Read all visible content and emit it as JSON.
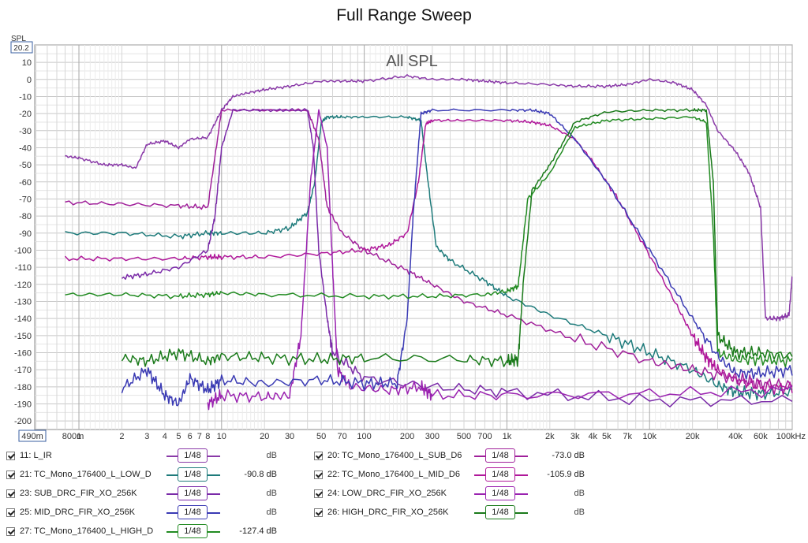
{
  "title": "Full Range Sweep",
  "chart_data": {
    "type": "line",
    "title": "All SPL",
    "ylabel": "SPL",
    "xlabel": "",
    "x_scale": "log",
    "xlim": [
      0.49,
      100000
    ],
    "ylim": [
      -205,
      20.2
    ],
    "grid": true,
    "y_top_label": "20.2",
    "x_left_label": "490m",
    "y_ticks": [
      10,
      0,
      -10,
      -20,
      -30,
      -40,
      -50,
      -60,
      -70,
      -80,
      -90,
      -100,
      -110,
      -120,
      -130,
      -140,
      -150,
      -160,
      -170,
      -180,
      -190,
      -200
    ],
    "x_ticks": [
      {
        "v": 0.8,
        "t": "800m"
      },
      {
        "v": 1,
        "t": "1"
      },
      {
        "v": 2,
        "t": "2"
      },
      {
        "v": 3,
        "t": "3"
      },
      {
        "v": 4,
        "t": "4"
      },
      {
        "v": 5,
        "t": "5"
      },
      {
        "v": 6,
        "t": "6"
      },
      {
        "v": 7,
        "t": "7"
      },
      {
        "v": 8,
        "t": "8"
      },
      {
        "v": 10,
        "t": "10"
      },
      {
        "v": 20,
        "t": "20"
      },
      {
        "v": 30,
        "t": "30"
      },
      {
        "v": 50,
        "t": "50"
      },
      {
        "v": 70,
        "t": "70"
      },
      {
        "v": 100,
        "t": "100"
      },
      {
        "v": 200,
        "t": "200"
      },
      {
        "v": 300,
        "t": "300"
      },
      {
        "v": 500,
        "t": "500"
      },
      {
        "v": 700,
        "t": "700"
      },
      {
        "v": 1000,
        "t": "1k"
      },
      {
        "v": 2000,
        "t": "2k"
      },
      {
        "v": 3000,
        "t": "3k"
      },
      {
        "v": 4000,
        "t": "4k"
      },
      {
        "v": 5000,
        "t": "5k"
      },
      {
        "v": 7000,
        "t": "7k"
      },
      {
        "v": 10000,
        "t": "10k"
      },
      {
        "v": 20000,
        "t": "20k"
      },
      {
        "v": 40000,
        "t": "40k"
      },
      {
        "v": 60000,
        "t": "60k"
      },
      {
        "v": 100000,
        "t": "100kHz"
      }
    ],
    "series": [
      {
        "name": "11: L_IR",
        "color": "#8a3aa8",
        "value_label": "dB",
        "points": [
          [
            0.8,
            -45
          ],
          [
            1,
            -46
          ],
          [
            1.5,
            -50
          ],
          [
            2,
            -50
          ],
          [
            2.5,
            -52
          ],
          [
            3,
            -38
          ],
          [
            4,
            -36
          ],
          [
            5,
            -40
          ],
          [
            6,
            -35
          ],
          [
            8,
            -34
          ],
          [
            10,
            -18
          ],
          [
            12,
            -10
          ],
          [
            15,
            -8
          ],
          [
            20,
            -6
          ],
          [
            30,
            -4
          ],
          [
            50,
            -1
          ],
          [
            70,
            -1
          ],
          [
            100,
            -1
          ],
          [
            200,
            2
          ],
          [
            300,
            0
          ],
          [
            500,
            0
          ],
          [
            700,
            -1
          ],
          [
            1000,
            -2
          ],
          [
            2000,
            -3
          ],
          [
            3000,
            -4
          ],
          [
            5000,
            -4
          ],
          [
            7000,
            -3
          ],
          [
            10000,
            0
          ],
          [
            15000,
            -2
          ],
          [
            20000,
            -6
          ],
          [
            25000,
            -15
          ],
          [
            30000,
            -30
          ],
          [
            40000,
            -42
          ],
          [
            50000,
            -55
          ],
          [
            60000,
            -75
          ],
          [
            65000,
            -140
          ],
          [
            80000,
            -140
          ],
          [
            95000,
            -138
          ],
          [
            100000,
            -115
          ]
        ]
      },
      {
        "name": "21: TC_Mono_176400_L_LOW_D",
        "color": "#1e7b7b",
        "value_label": "-90.8 dB",
        "points": [
          [
            0.8,
            -90
          ],
          [
            2,
            -90
          ],
          [
            5,
            -92
          ],
          [
            8,
            -90
          ],
          [
            10,
            -90
          ],
          [
            20,
            -90
          ],
          [
            30,
            -87
          ],
          [
            40,
            -78
          ],
          [
            45,
            -60
          ],
          [
            50,
            -25
          ],
          [
            55,
            -22
          ],
          [
            70,
            -22
          ],
          [
            100,
            -22
          ],
          [
            200,
            -22
          ],
          [
            250,
            -24
          ],
          [
            280,
            -60
          ],
          [
            320,
            -98
          ],
          [
            400,
            -106
          ],
          [
            700,
            -118
          ],
          [
            1000,
            -127
          ],
          [
            2000,
            -138
          ],
          [
            5000,
            -150
          ],
          [
            10000,
            -160
          ],
          [
            20000,
            -170
          ],
          [
            30000,
            -179
          ],
          [
            40000,
            -183
          ],
          [
            60000,
            -184
          ],
          [
            100000,
            -183
          ]
        ]
      },
      {
        "name": "20: TC_Mono_176400_L_SUB_D6",
        "color": "#a0209a",
        "value_label": "-73.0 dB",
        "points": [
          [
            0.8,
            -72
          ],
          [
            2,
            -73
          ],
          [
            5,
            -74
          ],
          [
            8,
            -75
          ],
          [
            10,
            -18
          ],
          [
            20,
            -18
          ],
          [
            40,
            -18
          ],
          [
            48,
            -35
          ],
          [
            55,
            -75
          ],
          [
            70,
            -90
          ],
          [
            100,
            -100
          ],
          [
            200,
            -112
          ],
          [
            300,
            -120
          ],
          [
            500,
            -130
          ],
          [
            1000,
            -138
          ],
          [
            3000,
            -152
          ],
          [
            10000,
            -165
          ],
          [
            20000,
            -170
          ],
          [
            40000,
            -175
          ],
          [
            60000,
            -178
          ],
          [
            100000,
            -179
          ]
        ]
      },
      {
        "name": "22: TC_Mono_176400_L_MID_D6",
        "color": "#b0189a",
        "value_label": "-105.9 dB",
        "points": [
          [
            0.8,
            -105
          ],
          [
            2,
            -105
          ],
          [
            5,
            -105
          ],
          [
            8,
            -104
          ],
          [
            10,
            -104
          ],
          [
            20,
            -104
          ],
          [
            50,
            -102
          ],
          [
            100,
            -100
          ],
          [
            150,
            -97
          ],
          [
            200,
            -90
          ],
          [
            240,
            -60
          ],
          [
            270,
            -26
          ],
          [
            300,
            -24
          ],
          [
            500,
            -24
          ],
          [
            1000,
            -24
          ],
          [
            1500,
            -25
          ],
          [
            2000,
            -27
          ],
          [
            3000,
            -35
          ],
          [
            4000,
            -48
          ],
          [
            6000,
            -70
          ],
          [
            10000,
            -103
          ],
          [
            15000,
            -130
          ],
          [
            20000,
            -150
          ],
          [
            25000,
            -163
          ],
          [
            30000,
            -170
          ],
          [
            40000,
            -176
          ],
          [
            60000,
            -180
          ],
          [
            100000,
            -181
          ]
        ]
      },
      {
        "name": "23: SUB_DRC_FIR_XO_256K",
        "color": "#7a2aa8",
        "value_label": "dB",
        "points": [
          [
            2,
            -116
          ],
          [
            3,
            -114
          ],
          [
            5,
            -110
          ],
          [
            8,
            -100
          ],
          [
            9,
            -80
          ],
          [
            10,
            -40
          ],
          [
            12,
            -18
          ],
          [
            20,
            -18
          ],
          [
            40,
            -18
          ],
          [
            44,
            -40
          ],
          [
            48,
            -100
          ],
          [
            55,
            -140
          ],
          [
            60,
            -160
          ],
          [
            100,
            -175
          ],
          [
            300,
            -180
          ],
          [
            1000,
            -183
          ],
          [
            10000,
            -188
          ],
          [
            100000,
            -188
          ]
        ]
      },
      {
        "name": "24: LOW_DRC_FIR_XO_256K",
        "color": "#9a22b0",
        "value_label": "dB",
        "points": [
          [
            8,
            -190
          ],
          [
            10,
            -185
          ],
          [
            20,
            -186
          ],
          [
            30,
            -185
          ],
          [
            36,
            -150
          ],
          [
            42,
            -60
          ],
          [
            48,
            -18
          ],
          [
            55,
            -40
          ],
          [
            60,
            -110
          ],
          [
            65,
            -170
          ],
          [
            80,
            -180
          ],
          [
            150,
            -182
          ],
          [
            250,
            -180
          ],
          [
            300,
            -185
          ],
          [
            1000,
            -185
          ],
          [
            10000,
            -184
          ],
          [
            100000,
            -182
          ]
        ]
      },
      {
        "name": "25: MID_DRC_FIR_XO_256K",
        "color": "#3a3ab4",
        "value_label": "dB",
        "points": [
          [
            2,
            -181
          ],
          [
            3,
            -170
          ],
          [
            4,
            -185
          ],
          [
            5,
            -190
          ],
          [
            6,
            -175
          ],
          [
            8,
            -182
          ],
          [
            10,
            -176
          ],
          [
            20,
            -178
          ],
          [
            50,
            -176
          ],
          [
            100,
            -178
          ],
          [
            170,
            -178
          ],
          [
            200,
            -140
          ],
          [
            220,
            -80
          ],
          [
            250,
            -20
          ],
          [
            300,
            -18
          ],
          [
            1000,
            -18
          ],
          [
            1500,
            -18
          ],
          [
            2000,
            -20
          ],
          [
            3000,
            -35
          ],
          [
            5000,
            -60
          ],
          [
            10000,
            -100
          ],
          [
            20000,
            -140
          ],
          [
            30000,
            -162
          ],
          [
            40000,
            -172
          ],
          [
            60000,
            -172
          ],
          [
            100000,
            -170
          ]
        ]
      },
      {
        "name": "26: HIGH_DRC_FIR_XO_256K",
        "color": "#1a7a1a",
        "value_label": "dB",
        "points": [
          [
            2,
            -163
          ],
          [
            3,
            -165
          ],
          [
            5,
            -160
          ],
          [
            8,
            -165
          ],
          [
            10,
            -162
          ],
          [
            20,
            -163
          ],
          [
            50,
            -164
          ],
          [
            100,
            -163
          ],
          [
            500,
            -164
          ],
          [
            1000,
            -165
          ],
          [
            1200,
            -164
          ],
          [
            1300,
            -120
          ],
          [
            1500,
            -65
          ],
          [
            2000,
            -50
          ],
          [
            3000,
            -25
          ],
          [
            5000,
            -19
          ],
          [
            10000,
            -18
          ],
          [
            20000,
            -18
          ],
          [
            25000,
            -18
          ],
          [
            28000,
            -60
          ],
          [
            30000,
            -150
          ],
          [
            40000,
            -160
          ],
          [
            60000,
            -160
          ],
          [
            100000,
            -162
          ]
        ]
      },
      {
        "name": "27: TC_Mono_176400_L_HIGH_D",
        "color": "#228b22",
        "value_label": "-127.4 dB",
        "points": [
          [
            0.8,
            -126
          ],
          [
            2,
            -126
          ],
          [
            5,
            -127
          ],
          [
            8,
            -126
          ],
          [
            10,
            -125
          ],
          [
            20,
            -126
          ],
          [
            100,
            -127
          ],
          [
            300,
            -127
          ],
          [
            700,
            -126
          ],
          [
            1000,
            -124
          ],
          [
            1200,
            -121
          ],
          [
            1400,
            -70
          ],
          [
            2000,
            -55
          ],
          [
            3000,
            -28
          ],
          [
            5000,
            -24
          ],
          [
            10000,
            -23
          ],
          [
            20000,
            -22
          ],
          [
            25000,
            -25
          ],
          [
            28000,
            -90
          ],
          [
            30000,
            -160
          ],
          [
            40000,
            -164
          ],
          [
            60000,
            -164
          ],
          [
            100000,
            -165
          ]
        ]
      }
    ]
  },
  "legend": [
    {
      "name": "11: L_IR",
      "smooth": "1/48",
      "value": "dB",
      "color": "#8a3aa8"
    },
    {
      "name": "20: TC_Mono_176400_L_SUB_D6",
      "smooth": "1/48",
      "value": "-73.0 dB",
      "color": "#a0209a"
    },
    {
      "name": "21: TC_Mono_176400_L_LOW_D",
      "smooth": "1/48",
      "value": "-90.8 dB",
      "color": "#1e7b7b"
    },
    {
      "name": "22: TC_Mono_176400_L_MID_D6",
      "smooth": "1/48",
      "value": "-105.9 dB",
      "color": "#b0189a"
    },
    {
      "name": "23: SUB_DRC_FIR_XO_256K",
      "smooth": "1/48",
      "value": "dB",
      "color": "#7a2aa8"
    },
    {
      "name": "24: LOW_DRC_FIR_XO_256K",
      "smooth": "1/48",
      "value": "dB",
      "color": "#9a22b0"
    },
    {
      "name": "25: MID_DRC_FIR_XO_256K",
      "smooth": "1/48",
      "value": "dB",
      "color": "#3a3ab4"
    },
    {
      "name": "26: HIGH_DRC_FIR_XO_256K",
      "smooth": "1/48",
      "value": "dB",
      "color": "#1a7a1a"
    },
    {
      "name": "27: TC_Mono_176400_L_HIGH_D",
      "smooth": "1/48",
      "value": "-127.4 dB",
      "color": "#228b22"
    }
  ]
}
